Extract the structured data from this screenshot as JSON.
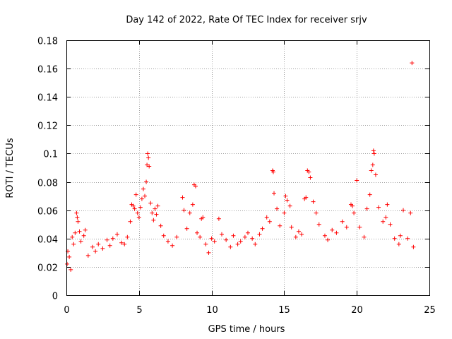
{
  "chart_data": {
    "type": "scatter",
    "title": "Day 142 of 2022, Rate Of TEC Index for receiver srjv",
    "xlabel": "GPS time / hours",
    "ylabel": "ROTI / TECUs",
    "xlim": [
      0,
      25
    ],
    "ylim": [
      0,
      0.18
    ],
    "grid": true,
    "marker": "+",
    "color": "#ff0000",
    "x_ticks": [
      0,
      5,
      10,
      15,
      20,
      25
    ],
    "x_tick_labels": [
      "0",
      "5",
      "10",
      "15",
      "20",
      "25"
    ],
    "y_ticks": [
      0,
      0.02,
      0.04,
      0.06,
      0.08,
      0.1,
      0.12,
      0.14,
      0.16,
      0.18
    ],
    "y_tick_labels": [
      "0",
      "0.02",
      "0.04",
      "0.06",
      "0.08",
      "0.1",
      "0.12",
      "0.14",
      "0.16",
      "0.18"
    ],
    "series": [
      {
        "name": "ROTI",
        "points": [
          [
            0.05,
            0.022
          ],
          [
            0.1,
            0.031
          ],
          [
            0.2,
            0.027
          ],
          [
            0.3,
            0.018
          ],
          [
            0.4,
            0.041
          ],
          [
            0.5,
            0.036
          ],
          [
            0.6,
            0.044
          ],
          [
            0.7,
            0.058
          ],
          [
            0.75,
            0.055
          ],
          [
            0.8,
            0.052
          ],
          [
            0.9,
            0.045
          ],
          [
            1.0,
            0.038
          ],
          [
            1.2,
            0.042
          ],
          [
            1.3,
            0.046
          ],
          [
            1.5,
            0.028
          ],
          [
            1.8,
            0.034
          ],
          [
            2.0,
            0.031
          ],
          [
            2.2,
            0.036
          ],
          [
            2.5,
            0.033
          ],
          [
            2.8,
            0.039
          ],
          [
            3.0,
            0.035
          ],
          [
            3.2,
            0.04
          ],
          [
            3.5,
            0.043
          ],
          [
            3.8,
            0.037
          ],
          [
            4.0,
            0.036
          ],
          [
            4.2,
            0.041
          ],
          [
            4.4,
            0.052
          ],
          [
            4.5,
            0.064
          ],
          [
            4.6,
            0.063
          ],
          [
            4.7,
            0.061
          ],
          [
            4.8,
            0.071
          ],
          [
            4.9,
            0.058
          ],
          [
            5.0,
            0.055
          ],
          [
            5.1,
            0.062
          ],
          [
            5.2,
            0.068
          ],
          [
            5.3,
            0.075
          ],
          [
            5.4,
            0.07
          ],
          [
            5.5,
            0.08
          ],
          [
            5.55,
            0.092
          ],
          [
            5.6,
            0.1
          ],
          [
            5.65,
            0.097
          ],
          [
            5.7,
            0.091
          ],
          [
            5.8,
            0.065
          ],
          [
            5.9,
            0.058
          ],
          [
            6.0,
            0.053
          ],
          [
            6.1,
            0.061
          ],
          [
            6.2,
            0.057
          ],
          [
            6.3,
            0.063
          ],
          [
            6.5,
            0.049
          ],
          [
            6.7,
            0.042
          ],
          [
            7.0,
            0.038
          ],
          [
            7.3,
            0.035
          ],
          [
            7.6,
            0.041
          ],
          [
            8.0,
            0.069
          ],
          [
            8.1,
            0.06
          ],
          [
            8.3,
            0.047
          ],
          [
            8.5,
            0.058
          ],
          [
            8.7,
            0.064
          ],
          [
            8.8,
            0.078
          ],
          [
            8.9,
            0.077
          ],
          [
            9.0,
            0.044
          ],
          [
            9.2,
            0.041
          ],
          [
            9.3,
            0.054
          ],
          [
            9.4,
            0.055
          ],
          [
            9.6,
            0.036
          ],
          [
            9.8,
            0.03
          ],
          [
            10.0,
            0.04
          ],
          [
            10.2,
            0.038
          ],
          [
            10.5,
            0.054
          ],
          [
            10.7,
            0.043
          ],
          [
            11.0,
            0.039
          ],
          [
            11.3,
            0.034
          ],
          [
            11.5,
            0.042
          ],
          [
            11.8,
            0.036
          ],
          [
            12.0,
            0.038
          ],
          [
            12.3,
            0.041
          ],
          [
            12.5,
            0.044
          ],
          [
            12.8,
            0.04
          ],
          [
            13.0,
            0.036
          ],
          [
            13.3,
            0.043
          ],
          [
            13.5,
            0.047
          ],
          [
            13.8,
            0.055
          ],
          [
            14.0,
            0.052
          ],
          [
            14.2,
            0.088
          ],
          [
            14.25,
            0.087
          ],
          [
            14.3,
            0.072
          ],
          [
            14.5,
            0.061
          ],
          [
            14.7,
            0.049
          ],
          [
            15.0,
            0.058
          ],
          [
            15.1,
            0.07
          ],
          [
            15.2,
            0.067
          ],
          [
            15.4,
            0.063
          ],
          [
            15.5,
            0.048
          ],
          [
            15.8,
            0.041
          ],
          [
            16.0,
            0.045
          ],
          [
            16.2,
            0.043
          ],
          [
            16.4,
            0.068
          ],
          [
            16.5,
            0.069
          ],
          [
            16.6,
            0.088
          ],
          [
            16.7,
            0.087
          ],
          [
            16.8,
            0.083
          ],
          [
            17.0,
            0.066
          ],
          [
            17.2,
            0.058
          ],
          [
            17.4,
            0.05
          ],
          [
            17.8,
            0.042
          ],
          [
            18.0,
            0.039
          ],
          [
            18.3,
            0.046
          ],
          [
            18.6,
            0.044
          ],
          [
            19.0,
            0.052
          ],
          [
            19.3,
            0.048
          ],
          [
            19.6,
            0.064
          ],
          [
            19.7,
            0.063
          ],
          [
            19.8,
            0.058
          ],
          [
            20.0,
            0.081
          ],
          [
            20.2,
            0.048
          ],
          [
            20.5,
            0.041
          ],
          [
            20.7,
            0.061
          ],
          [
            20.9,
            0.071
          ],
          [
            21.0,
            0.088
          ],
          [
            21.1,
            0.092
          ],
          [
            21.15,
            0.102
          ],
          [
            21.2,
            0.1
          ],
          [
            21.3,
            0.085
          ],
          [
            21.5,
            0.062
          ],
          [
            21.8,
            0.052
          ],
          [
            22.0,
            0.055
          ],
          [
            22.1,
            0.064
          ],
          [
            22.3,
            0.05
          ],
          [
            22.6,
            0.04
          ],
          [
            22.9,
            0.036
          ],
          [
            23.0,
            0.042
          ],
          [
            23.2,
            0.06
          ],
          [
            23.5,
            0.04
          ],
          [
            23.7,
            0.058
          ],
          [
            23.8,
            0.164
          ],
          [
            23.9,
            0.034
          ]
        ]
      }
    ]
  }
}
